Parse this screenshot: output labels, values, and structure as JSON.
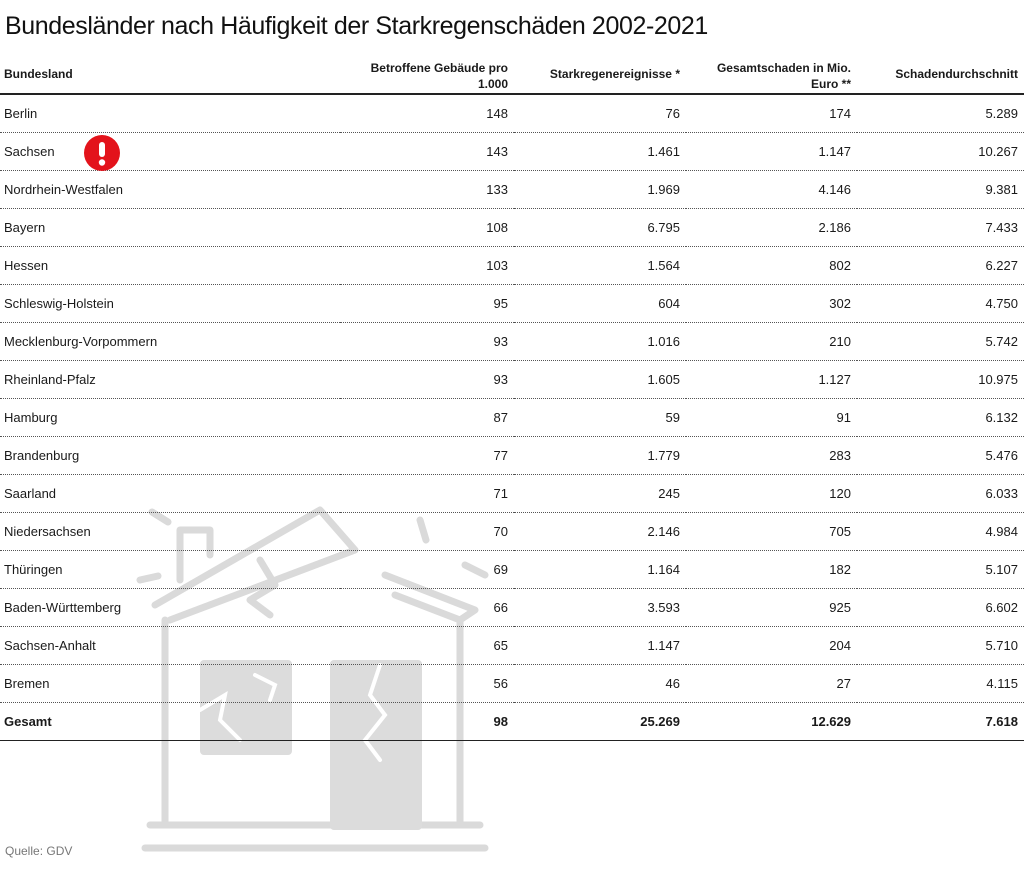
{
  "title": "Bundesländer nach Häufigkeit der Starkregenschäden 2002-2021",
  "source": "Quelle: GDV",
  "warning_icon": "exclamation-circle-icon",
  "accent_color": "#e3131b",
  "chart_data": {
    "type": "table",
    "columns": [
      "Bundesland",
      "Betroffene Gebäude pro 1.000",
      "Starkregenereignisse *",
      "Gesamtschaden in Mio. Euro **",
      "Schadendurchschnitt"
    ],
    "rows": [
      [
        "Berlin",
        "148",
        "76",
        "174",
        "5.289"
      ],
      [
        "Sachsen",
        "143",
        "1.461",
        "1.147",
        "10.267"
      ],
      [
        "Nordrhein-Westfalen",
        "133",
        "1.969",
        "4.146",
        "9.381"
      ],
      [
        "Bayern",
        "108",
        "6.795",
        "2.186",
        "7.433"
      ],
      [
        "Hessen",
        "103",
        "1.564",
        "802",
        "6.227"
      ],
      [
        "Schleswig-Holstein",
        "95",
        "604",
        "302",
        "4.750"
      ],
      [
        "Mecklenburg-Vorpommern",
        "93",
        "1.016",
        "210",
        "5.742"
      ],
      [
        "Rheinland-Pfalz",
        "93",
        "1.605",
        "1.127",
        "10.975"
      ],
      [
        "Hamburg",
        "87",
        "59",
        "91",
        "6.132"
      ],
      [
        "Brandenburg",
        "77",
        "1.779",
        "283",
        "5.476"
      ],
      [
        "Saarland",
        "71",
        "245",
        "120",
        "6.033"
      ],
      [
        "Niedersachsen",
        "70",
        "2.146",
        "705",
        "4.984"
      ],
      [
        "Thüringen",
        "69",
        "1.164",
        "182",
        "5.107"
      ],
      [
        "Baden-Württemberg",
        "66",
        "3.593",
        "925",
        "6.602"
      ],
      [
        "Sachsen-Anhalt",
        "65",
        "1.147",
        "204",
        "5.710"
      ],
      [
        "Bremen",
        "56",
        "46",
        "27",
        "4.115"
      ]
    ],
    "total": [
      "Gesamt",
      "98",
      "25.269",
      "12.629",
      "7.618"
    ],
    "highlight_row": "Sachsen"
  }
}
